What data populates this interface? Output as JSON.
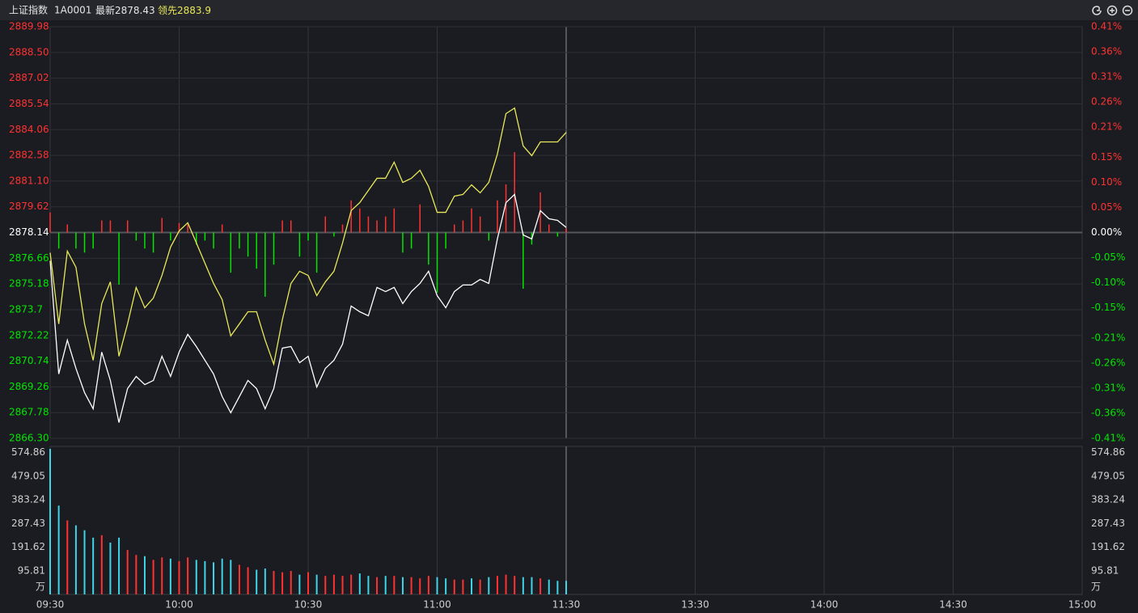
{
  "header": {
    "name": "上证指数",
    "code": "1A0001"
  },
  "chart_data": [
    {
      "type": "line",
      "x": [
        "09:30",
        "09:32",
        "09:34",
        "09:36",
        "09:38",
        "09:40",
        "09:42",
        "09:44",
        "09:46",
        "09:48",
        "09:50",
        "09:52",
        "09:54",
        "09:56",
        "09:58",
        "10:00",
        "10:02",
        "10:04",
        "10:06",
        "10:08",
        "10:10",
        "10:12",
        "10:14",
        "10:16",
        "10:18",
        "10:20",
        "10:22",
        "10:24",
        "10:26",
        "10:28",
        "10:30",
        "10:32",
        "10:34",
        "10:36",
        "10:38",
        "10:40",
        "10:42",
        "10:44",
        "10:46",
        "10:48",
        "10:50",
        "10:52",
        "10:54",
        "10:56",
        "10:58",
        "11:00",
        "11:02",
        "11:04",
        "11:06",
        "11:08",
        "11:10",
        "11:12",
        "11:14",
        "11:16",
        "11:18",
        "11:20",
        "11:22",
        "11:24",
        "11:26",
        "11:28",
        "11:30"
      ],
      "xlim": [
        "09:30",
        "15:00"
      ],
      "ylim": [
        2866.3,
        2889.98
      ],
      "yticks": [
        {
          "value": 2866.3,
          "label": "2866.30"
        },
        2867.78,
        2869.26,
        2870.74,
        2872.22,
        2873.7,
        2875.18,
        2876.66,
        2878.14,
        2879.62,
        {
          "value": 2881.1,
          "label": "2881.10"
        },
        2882.58,
        2884.06,
        2885.54,
        2887.02,
        {
          "value": 2888.5,
          "label": "2888.50"
        },
        2889.98
      ],
      "y2lim": [
        -0.41,
        0.41
      ],
      "y2ticks": [
        {
          "value": -0.41,
          "label": "-0.41%"
        },
        {
          "value": -0.36,
          "label": "-0.36%"
        },
        {
          "value": -0.31,
          "label": "-0.31%"
        },
        {
          "value": -0.26,
          "label": "-0.26%"
        },
        {
          "value": -0.21,
          "label": "-0.21%"
        },
        {
          "value": -0.15,
          "label": "-0.15%"
        },
        {
          "value": -0.1,
          "label": "-0.10%"
        },
        {
          "value": -0.05,
          "label": "-0.05%"
        },
        {
          "value": 0,
          "label": "0.00%"
        },
        {
          "value": 0.05,
          "label": "0.05%"
        },
        {
          "value": 0.1,
          "label": "0.10%"
        },
        {
          "value": 0.15,
          "label": "0.15%"
        },
        {
          "value": 0.21,
          "label": "0.21%"
        },
        {
          "value": 0.26,
          "label": "0.26%"
        },
        {
          "value": 0.31,
          "label": "0.31%"
        },
        {
          "value": 0.36,
          "label": "0.36%"
        },
        {
          "value": 0.41,
          "label": "0.41%"
        }
      ],
      "grid": true,
      "up_color": "#ff3232",
      "down_color": "#00e600",
      "flat_color": "#ffffff",
      "series": [
        {
          "name": "最新",
          "color": "#ffffff",
          "values": [
            2876.51,
            2870.0,
            2871.95,
            2870.32,
            2868.93,
            2868.0,
            2871.26,
            2869.63,
            2867.21,
            2869.16,
            2869.86,
            2869.39,
            2869.63,
            2871.02,
            2869.86,
            2871.26,
            2872.28,
            2871.58,
            2870.79,
            2870.0,
            2868.7,
            2867.77,
            2868.7,
            2869.63,
            2869.16,
            2868.0,
            2869.16,
            2871.49,
            2871.58,
            2870.65,
            2871.02,
            2869.25,
            2870.32,
            2870.79,
            2871.72,
            2873.91,
            2873.58,
            2873.35,
            2874.98,
            2874.74,
            2874.98,
            2874.05,
            2874.74,
            2875.21,
            2875.91,
            2874.51,
            2873.81,
            2874.74,
            2875.12,
            2875.12,
            2875.44,
            2875.21,
            2877.77,
            2879.86,
            2880.33,
            2878.0,
            2877.77,
            2879.4,
            2878.93,
            2878.84,
            2878.43
          ]
        },
        {
          "name": "领先",
          "color": "#e8e85a",
          "values": [
            2876.98,
            2872.88,
            2877.07,
            2876.14,
            2872.88,
            2870.79,
            2874.05,
            2875.3,
            2871.02,
            2872.88,
            2874.98,
            2873.81,
            2874.37,
            2875.67,
            2877.3,
            2878.23,
            2878.7,
            2877.54,
            2876.37,
            2875.21,
            2874.28,
            2872.19,
            2872.88,
            2873.58,
            2873.58,
            2871.95,
            2870.56,
            2873.12,
            2875.21,
            2875.91,
            2875.67,
            2874.51,
            2875.3,
            2875.91,
            2877.54,
            2879.4,
            2879.86,
            2880.56,
            2881.26,
            2881.26,
            2882.19,
            2881.02,
            2881.26,
            2881.72,
            2880.79,
            2879.3,
            2879.3,
            2880.23,
            2880.33,
            2880.88,
            2880.42,
            2881.02,
            2882.65,
            2884.98,
            2885.3,
            2883.12,
            2882.56,
            2883.35,
            2883.35,
            2883.35,
            2883.9
          ]
        },
        {
          "type": "bar",
          "axis": "y2",
          "values": [
            0.04,
            -0.032,
            0.016,
            -0.032,
            -0.04,
            -0.032,
            0.024,
            0.024,
            -0.104,
            0.024,
            -0.016,
            -0.032,
            -0.04,
            0.029,
            -0.016,
            0.019,
            0.016,
            -0.024,
            -0.016,
            -0.032,
            0.016,
            -0.08,
            -0.032,
            -0.048,
            -0.072,
            -0.128,
            -0.064,
            0.024,
            0.024,
            -0.048,
            -0.016,
            -0.08,
            0.032,
            -0.008,
            0.016,
            0.064,
            0.048,
            0.032,
            0.024,
            0.032,
            0.048,
            -0.04,
            -0.032,
            0.056,
            -0.064,
            -0.12,
            -0.032,
            0.016,
            0.024,
            0.048,
            0.032,
            -0.016,
            0.064,
            0.096,
            0.16,
            -0.112,
            -0.024,
            0.08,
            0.016,
            -0.008,
            0.008
          ]
        }
      ]
    },
    {
      "type": "bar",
      "ylim": [
        0,
        600
      ],
      "yticks": [
        95.81,
        191.62,
        287.43,
        383.24,
        479.05,
        574.86
      ],
      "unit": "万",
      "xticks": [
        "09:30",
        "10:00",
        "10:30",
        "11:00",
        "11:30",
        "13:30",
        "14:00",
        "14:30",
        "15:00"
      ],
      "up_color": "#ff3232",
      "down_color": "#3fd4e6",
      "values": [
        590,
        360,
        300,
        280,
        260,
        230,
        240,
        210,
        230,
        180,
        160,
        155,
        140,
        150,
        145,
        135,
        150,
        140,
        135,
        130,
        145,
        140,
        120,
        110,
        100,
        105,
        95,
        90,
        95,
        80,
        90,
        80,
        75,
        80,
        75,
        80,
        85,
        75,
        70,
        75,
        75,
        70,
        70,
        65,
        75,
        70,
        65,
        60,
        60,
        65,
        60,
        70,
        75,
        80,
        75,
        70,
        70,
        65,
        60,
        55,
        55
      ]
    }
  ]
}
